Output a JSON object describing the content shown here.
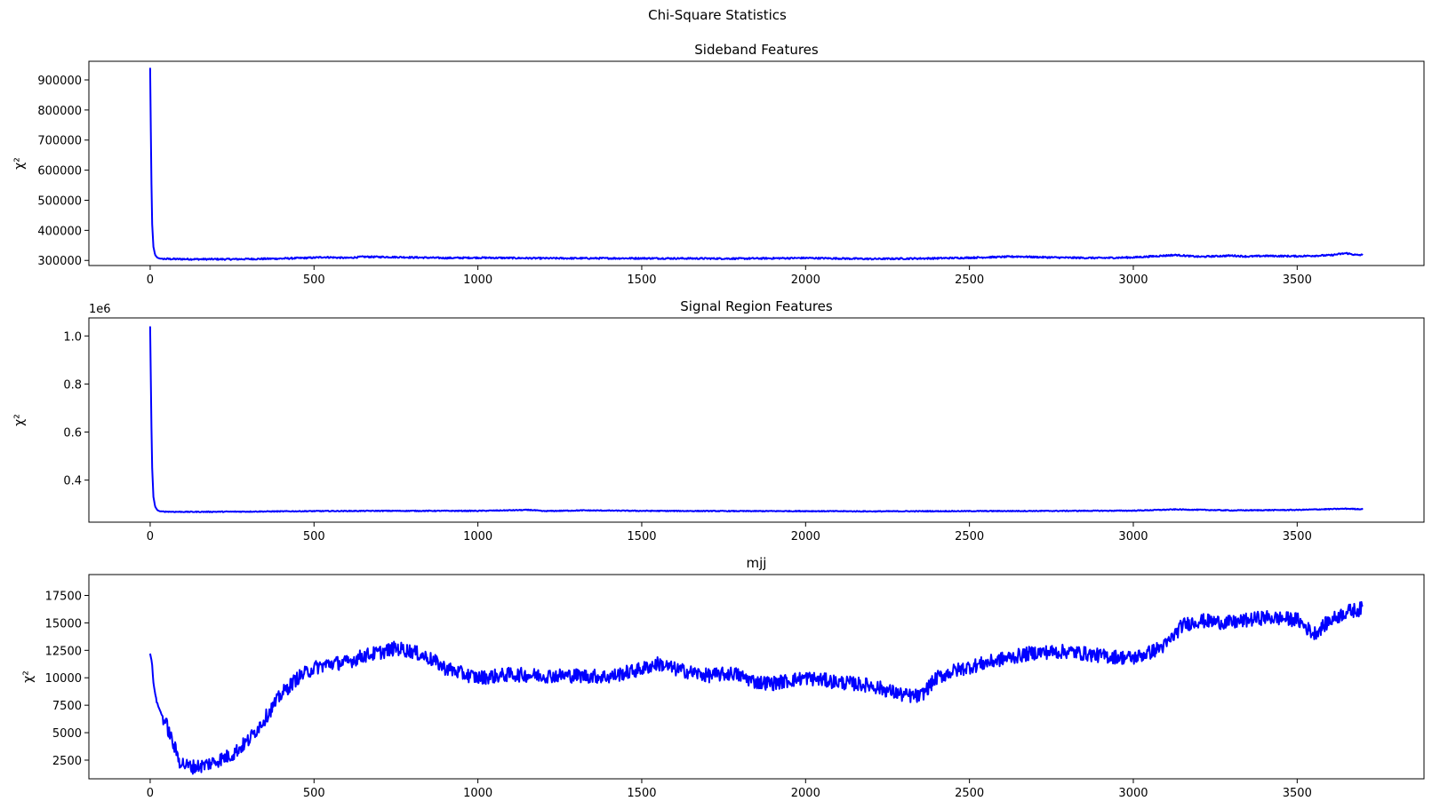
{
  "figure": {
    "suptitle": "Chi-Square Statistics"
  },
  "colors": {
    "line": "#0000ff",
    "axes": "#000000",
    "background": "#ffffff"
  },
  "chart_data": [
    {
      "type": "line",
      "title": "Sideband Features",
      "ylabel": "χ²",
      "xlabel": "",
      "grid": false,
      "xlim": [
        -187,
        3887
      ],
      "ylim": [
        283000,
        962000
      ],
      "xticks": [
        0,
        500,
        1000,
        1500,
        2000,
        2500,
        3000,
        3500
      ],
      "yticks": [
        300000,
        400000,
        500000,
        600000,
        700000,
        800000,
        900000
      ],
      "ytick_labels": [
        "300000",
        "400000",
        "500000",
        "600000",
        "700000",
        "800000",
        "900000"
      ],
      "offset_text": "",
      "series": [
        {
          "color": "#0000ff",
          "x": [
            0,
            3,
            6,
            10,
            15,
            22,
            30,
            45,
            80,
            150,
            250,
            400,
            500,
            530,
            600,
            650,
            750,
            900,
            1000,
            1200,
            1500,
            1800,
            2000,
            2200,
            2400,
            2500,
            2650,
            2700,
            2800,
            2900,
            3000,
            3130,
            3200,
            3300,
            3350,
            3400,
            3500,
            3600,
            3650,
            3680,
            3700
          ],
          "y": [
            940000,
            620000,
            420000,
            345000,
            318000,
            309000,
            306000,
            305000,
            304500,
            304000,
            304000,
            306000,
            309000,
            311000,
            308000,
            312000,
            311000,
            308000,
            309000,
            307000,
            307000,
            306000,
            308000,
            305000,
            307000,
            309000,
            313000,
            311000,
            309000,
            308000,
            310000,
            318000,
            312000,
            316000,
            313000,
            315000,
            314000,
            317000,
            324000,
            318000,
            318000
          ],
          "noise": 2600
        }
      ]
    },
    {
      "type": "line",
      "title": "Signal Region Features",
      "ylabel": "χ²",
      "xlabel": "",
      "grid": false,
      "xlim": [
        -187,
        3887
      ],
      "ylim": [
        0.225,
        1.075
      ],
      "xticks": [
        0,
        500,
        1000,
        1500,
        2000,
        2500,
        3000,
        3500
      ],
      "yticks": [
        0.4,
        0.6,
        0.8,
        1.0
      ],
      "ytick_labels": [
        "0.4",
        "0.6",
        "0.8",
        "1.0"
      ],
      "offset_text": "1e6",
      "series": [
        {
          "color": "#0000ff",
          "x": [
            0,
            3,
            6,
            10,
            15,
            22,
            30,
            45,
            80,
            150,
            300,
            500,
            700,
            1000,
            1160,
            1200,
            1320,
            1500,
            1800,
            2000,
            2200,
            2500,
            2800,
            3000,
            3130,
            3300,
            3500,
            3650,
            3700
          ],
          "y": [
            1.04,
            0.7,
            0.45,
            0.33,
            0.29,
            0.275,
            0.27,
            0.269,
            0.268,
            0.268,
            0.269,
            0.271,
            0.272,
            0.272,
            0.276,
            0.271,
            0.274,
            0.272,
            0.271,
            0.271,
            0.27,
            0.271,
            0.272,
            0.273,
            0.278,
            0.274,
            0.276,
            0.281,
            0.279
          ],
          "noise": 0.0018
        }
      ]
    },
    {
      "type": "line",
      "title": "mjj",
      "ylabel": "χ²",
      "xlabel": "",
      "grid": false,
      "xlim": [
        -187,
        3887
      ],
      "ylim": [
        800,
        19400
      ],
      "xticks": [
        0,
        500,
        1000,
        1500,
        2000,
        2500,
        3000,
        3500
      ],
      "yticks": [
        2500,
        5000,
        7500,
        10000,
        12500,
        15000,
        17500
      ],
      "ytick_labels": [
        "2500",
        "5000",
        "7500",
        "10000",
        "12500",
        "15000",
        "17500"
      ],
      "offset_text": "",
      "series": [
        {
          "color": "#0000ff",
          "x": [
            0,
            5,
            10,
            20,
            30,
            50,
            70,
            90,
            110,
            130,
            160,
            200,
            250,
            300,
            350,
            400,
            450,
            500,
            550,
            600,
            650,
            700,
            750,
            800,
            850,
            900,
            950,
            1000,
            1100,
            1200,
            1300,
            1400,
            1500,
            1550,
            1600,
            1700,
            1780,
            1850,
            1900,
            2000,
            2100,
            2200,
            2300,
            2350,
            2400,
            2450,
            2500,
            2600,
            2700,
            2800,
            2900,
            3000,
            3050,
            3100,
            3150,
            3200,
            3300,
            3400,
            3500,
            3550,
            3600,
            3650,
            3700
          ],
          "y": [
            12200,
            11500,
            9500,
            7800,
            7000,
            5700,
            4000,
            2400,
            2000,
            1900,
            2000,
            2400,
            3000,
            4300,
            6300,
            8500,
            10000,
            10900,
            11300,
            11400,
            12000,
            12300,
            12700,
            12400,
            11800,
            10900,
            10400,
            10000,
            10300,
            10200,
            10200,
            10100,
            10800,
            11300,
            10800,
            10200,
            10400,
            9600,
            9500,
            10000,
            9600,
            9300,
            8400,
            8300,
            10000,
            10600,
            11000,
            11700,
            12300,
            12400,
            12000,
            11800,
            12300,
            13000,
            14800,
            15200,
            15000,
            15500,
            15300,
            14000,
            15200,
            16000,
            16300
          ],
          "noise": 650
        }
      ]
    }
  ]
}
